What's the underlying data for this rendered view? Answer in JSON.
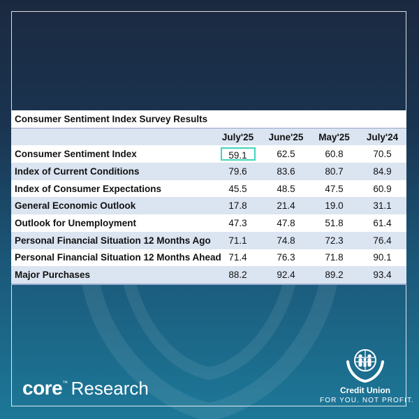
{
  "table": {
    "title": "Consumer Sentiment Index Survey Results",
    "columns": [
      "July'25",
      "June'25",
      "May'25",
      "July'24"
    ],
    "rows": [
      {
        "label": "Consumer Sentiment Index",
        "values": [
          "59.1",
          "62.5",
          "60.8",
          "70.5"
        ]
      },
      {
        "label": "Index of Current Conditions",
        "values": [
          "79.6",
          "83.6",
          "80.7",
          "84.9"
        ]
      },
      {
        "label": "Index of Consumer Expectations",
        "values": [
          "45.5",
          "48.5",
          "47.5",
          "60.9"
        ]
      },
      {
        "label": "General Economic Outlook",
        "values": [
          "17.8",
          "21.4",
          "19.0",
          "31.1"
        ]
      },
      {
        "label": "Outlook for Unemployment",
        "values": [
          "47.3",
          "47.8",
          "51.8",
          "61.4"
        ]
      },
      {
        "label": "Personal Financial Situation 12 Months Ago",
        "values": [
          "71.1",
          "74.8",
          "72.3",
          "76.4"
        ]
      },
      {
        "label": "Personal Financial Situation 12 Months Ahead",
        "values": [
          "71.4",
          "76.3",
          "71.8",
          "90.1"
        ]
      },
      {
        "label": "Major Purchases",
        "values": [
          "88.2",
          "92.4",
          "89.2",
          "93.4"
        ]
      }
    ],
    "highlight_color": "#3fd5bc"
  },
  "brand": {
    "core": "core",
    "trademark": "™",
    "research": "Research"
  },
  "credit_union_logo": {
    "icon": "hands-holding-family-globe-icon",
    "name": "Credit Union",
    "tagline": "FOR YOU. NOT PROFIT."
  },
  "colors": {
    "header_band": "#dbe4f1",
    "background_top": "#1b2940",
    "background_bottom": "#1d7898"
  }
}
